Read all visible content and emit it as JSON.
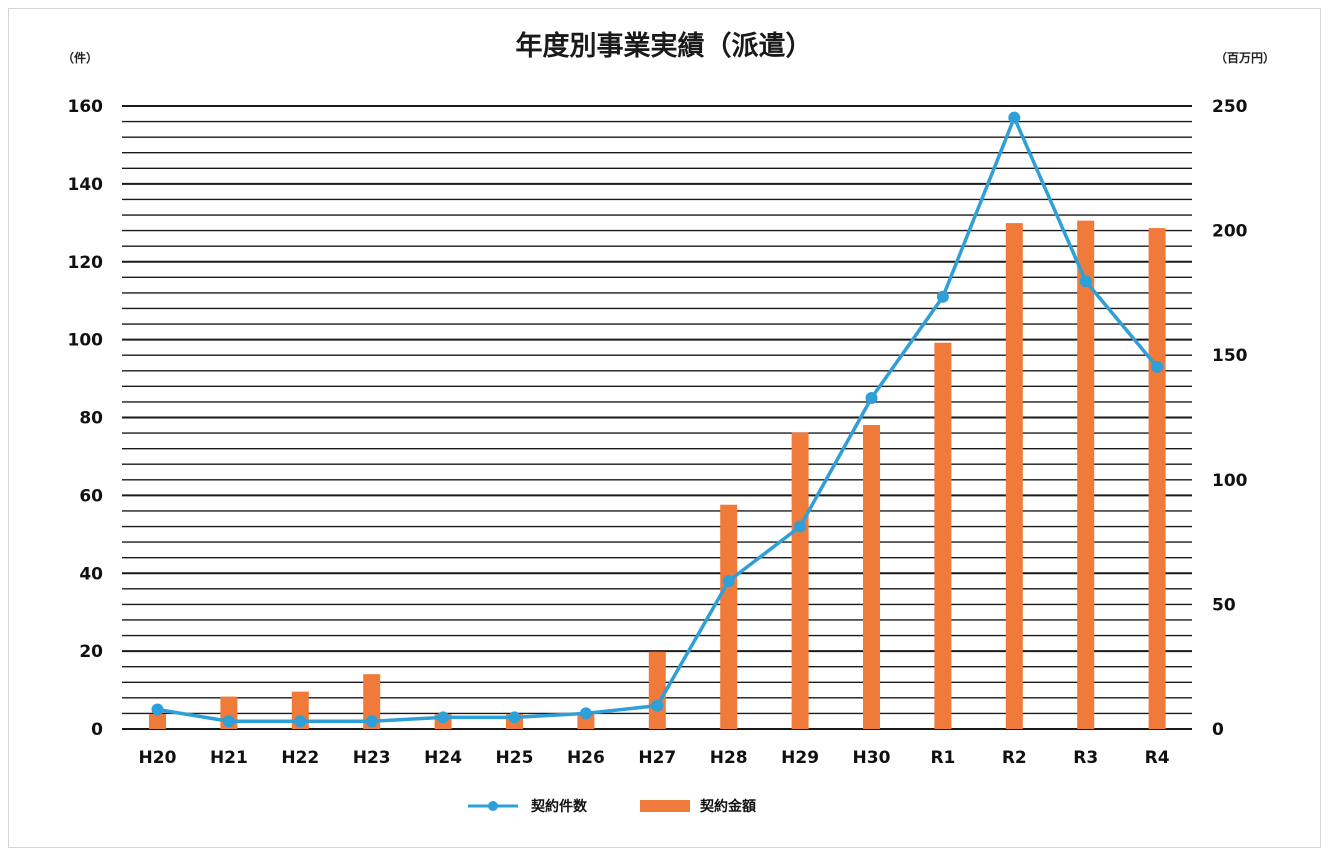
{
  "chart_data": {
    "type": "bar+line",
    "title": "年度別事業実績（派遣）",
    "left_axis_unit": "（件）",
    "right_axis_unit": "（百万円）",
    "categories": [
      "H20",
      "H21",
      "H22",
      "H23",
      "H24",
      "H25",
      "H26",
      "H27",
      "H28",
      "H29",
      "H30",
      "R1",
      "R2",
      "R3",
      "R4"
    ],
    "left_ylim": [
      0,
      160
    ],
    "left_ticks": [
      "0",
      "20",
      "40",
      "60",
      "80",
      "100",
      "120",
      "140",
      "160"
    ],
    "right_ylim": [
      0,
      250
    ],
    "right_ticks": [
      "0",
      "50",
      "100",
      "150",
      "200",
      "250"
    ],
    "series": [
      {
        "name": "契約件数",
        "type": "line",
        "axis": "left",
        "values": [
          5,
          2,
          2,
          2,
          3,
          3,
          4,
          6,
          38,
          52,
          85,
          111,
          157,
          115,
          93
        ]
      },
      {
        "name": "契約金額",
        "type": "bar",
        "axis": "right",
        "values": [
          6,
          13,
          15,
          22,
          6,
          6,
          6,
          31,
          90,
          119,
          122,
          155,
          203,
          204,
          201
        ]
      }
    ],
    "legend_position": "bottom",
    "grid": true,
    "colors": {
      "line": "#2f9fd8",
      "bar": "#f07a3a",
      "grid": "#1a1a1a"
    }
  }
}
